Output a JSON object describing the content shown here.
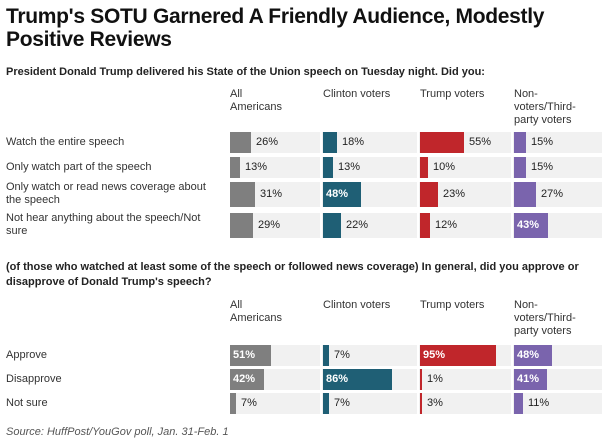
{
  "title": "Trump's SOTU Garnered A Friendly Audience, Modestly Positive Reviews",
  "source": "Source: HuffPost/YouGov poll, Jan. 31-Feb. 1",
  "colors": {
    "All Americans": "#7f7f7f",
    "Clinton voters": "#1f5f75",
    "Trump voters": "#c0262b",
    "Non-voters/Third-party voters": "#7a64ad",
    "row_background": "#f1f1f1"
  },
  "chart_data": [
    {
      "type": "bar",
      "question": "President Donald Trump delivered his State of the Union speech on Tuesday night. Did you:",
      "columns": [
        "All Americans",
        "Clinton voters",
        "Trump voters",
        "Non-voters/Third-party voters"
      ],
      "column_labels": [
        "All Americans",
        "Clinton voters",
        "Trump voters",
        "Non-voters/Third-party voters"
      ],
      "categories": [
        "Watch the entire speech",
        "Only watch part of the speech",
        "Only watch or read news coverage about the speech",
        "Not hear anything about the speech/Not sure"
      ],
      "series": [
        {
          "name": "All Americans",
          "values": [
            26,
            13,
            31,
            29
          ]
        },
        {
          "name": "Clinton voters",
          "values": [
            18,
            13,
            48,
            22
          ]
        },
        {
          "name": "Trump voters",
          "values": [
            55,
            10,
            23,
            12
          ]
        },
        {
          "name": "Non-voters/Third-party voters",
          "values": [
            15,
            15,
            27,
            43
          ]
        }
      ],
      "highlighted": [
        [
          false,
          false,
          false,
          false
        ],
        [
          false,
          false,
          false,
          false
        ],
        [
          false,
          true,
          false,
          false
        ],
        [
          false,
          false,
          false,
          true
        ]
      ],
      "value_suffix": "%"
    },
    {
      "type": "bar",
      "question": "(of those who watched at least some of the speech or followed news coverage) In general, did you approve or disapprove of Donald Trump's speech?",
      "columns": [
        "All Americans",
        "Clinton voters",
        "Trump voters",
        "Non-voters/Third-party voters"
      ],
      "column_labels": [
        "All Americans",
        "Clinton voters",
        "Trump voters",
        "Non-voters/Third-party voters"
      ],
      "categories": [
        "Approve",
        "Disapprove",
        "Not sure"
      ],
      "series": [
        {
          "name": "All Americans",
          "values": [
            51,
            42,
            7
          ]
        },
        {
          "name": "Clinton voters",
          "values": [
            7,
            86,
            7
          ]
        },
        {
          "name": "Trump voters",
          "values": [
            95,
            1,
            3
          ]
        },
        {
          "name": "Non-voters/Third-party voters",
          "values": [
            48,
            41,
            11
          ]
        }
      ],
      "highlighted": [
        [
          true,
          false,
          true,
          true
        ],
        [
          true,
          true,
          false,
          true
        ],
        [
          false,
          false,
          false,
          false
        ]
      ],
      "value_suffix": "%"
    }
  ]
}
